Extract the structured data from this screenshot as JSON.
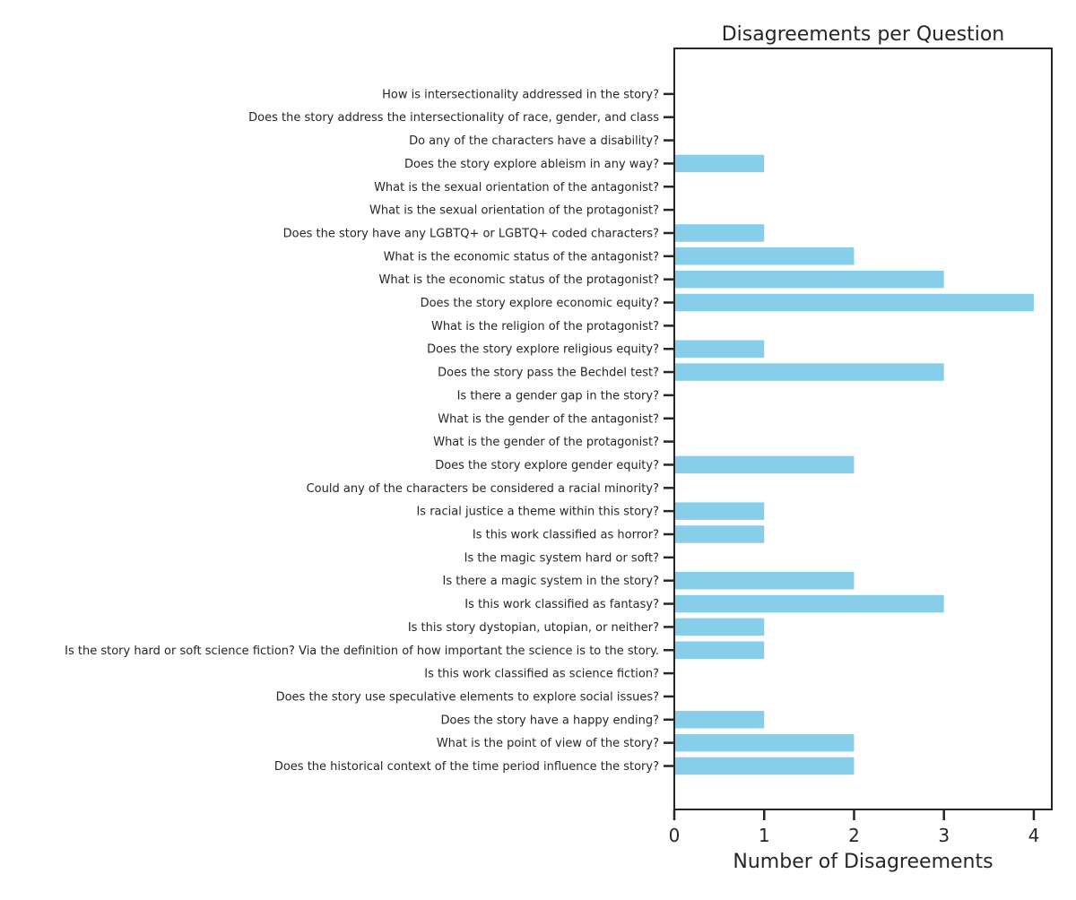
{
  "chart_data": {
    "type": "bar",
    "orientation": "horizontal",
    "title": "Disagreements per Question",
    "xlabel": "Number of Disagreements",
    "ylabel": "",
    "xlim": [
      0,
      4.2
    ],
    "xticks": [
      0,
      1,
      2,
      3,
      4
    ],
    "grid": false,
    "bar_color": "#87CEEB",
    "categories": [
      "Does the historical context of the time period influence the story?",
      "What is the point of view of the story?",
      "Does the story have a happy ending?",
      "Does the story use speculative elements to explore social issues?",
      "Is this work classified as science fiction?",
      "Is the story hard or soft science fiction? Via the definition of how important the science is to the story.",
      "Is this story dystopian, utopian, or neither?",
      "Is this work classified as fantasy?",
      "Is there a magic system in the story?",
      "Is the magic system hard or soft?",
      "Is this work classified as horror?",
      "Is racial justice a theme within this story?",
      "Could any of the characters be considered a racial minority?",
      "Does the story explore gender equity?",
      "What is the gender of the protagonist?",
      "What is the gender of the antagonist?",
      "Is there a gender gap in the story?",
      "Does the story pass the Bechdel test?",
      "Does the story explore religious equity?",
      "What is the religion of the protagonist?",
      "Does the story explore economic equity?",
      "What is the economic status of the protagonist?",
      "What is the economic status of the antagonist?",
      "Does the story have any LGBTQ+ or LGBTQ+ coded characters?",
      "What is the sexual orientation of the protagonist?",
      "What is the sexual orientation of the antagonist?",
      "Does the story explore ableism in any way?",
      "Do any of the characters have a disability?",
      "Does the story address the intersectionality of race, gender, and class",
      "How is intersectionality addressed in the story?"
    ],
    "values": [
      2,
      2,
      1,
      0,
      0,
      1,
      1,
      3,
      2,
      0,
      1,
      1,
      0,
      2,
      0,
      0,
      0,
      3,
      1,
      0,
      4,
      3,
      2,
      1,
      0,
      0,
      1,
      0,
      0,
      0
    ]
  }
}
